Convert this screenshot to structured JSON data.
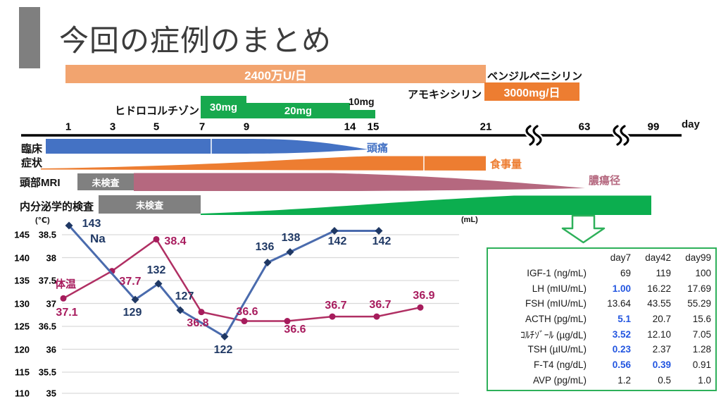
{
  "slide_title": "今回の症例のまとめ",
  "medications": {
    "penicillin_dose": "2400万U/日",
    "penicillin_name": "ベンジルペニシリン",
    "amoxicillin_name": "アモキシシリン",
    "amoxicillin_dose": "3000mg/日",
    "hydrocortisone_name": "ヒドロコルチゾン",
    "hydrocortisone_doses": [
      "30mg",
      "20mg",
      "10mg"
    ]
  },
  "day_axis": {
    "ticks": [
      "1",
      "3",
      "5",
      "7",
      "9",
      "14",
      "15",
      "21",
      "63",
      "99"
    ],
    "unit_label": "day"
  },
  "course": {
    "clinical_label": "臨床\n症状",
    "headache_label": "頭痛",
    "meal_label": "食事量",
    "mri_label": "頭部MRI",
    "not_tested_1": "未検査",
    "not_tested_2": "未検査",
    "abscess_label": "膿瘍径",
    "endocrine_label": "内分泌学的検査"
  },
  "chart": {
    "celsius_unit": "(℃)",
    "ml_unit": "(mL)",
    "na_ticks": [
      "145",
      "140",
      "135",
      "130",
      "125",
      "120",
      "115",
      "110"
    ],
    "temp_ticks": [
      "38.5",
      "38",
      "37.5",
      "37",
      "36.5",
      "36",
      "35.5",
      "35"
    ],
    "na_legend": "Na",
    "temp_legend": "体温"
  },
  "chart_data": [
    {
      "type": "line",
      "title": "clinical course: serum Na and body temperature",
      "series": [
        {
          "name": "Na",
          "values": [
            143,
            129,
            132,
            127,
            122,
            136,
            138,
            142,
            142
          ],
          "decimals": 0
        },
        {
          "name": "体温",
          "values": [
            37.1,
            37.7,
            38.4,
            36.8,
            36.6,
            36.6,
            36.7,
            36.7,
            36.9
          ],
          "decimals": 1
        }
      ],
      "left_axis": {
        "label": "Na",
        "ticks": [
          145,
          140,
          135,
          130,
          125,
          120,
          115,
          110
        ]
      },
      "right_axis": {
        "label": "(℃)",
        "ticks": [
          38.5,
          38,
          37.5,
          37,
          36.5,
          36,
          35.5,
          35
        ]
      },
      "x_axis": {
        "label": "day",
        "ticks": [
          1,
          3,
          5,
          7,
          9,
          14,
          15,
          21,
          63,
          99
        ]
      },
      "grid": true,
      "legend_position": "inline"
    },
    {
      "type": "table",
      "columns": [
        "day7",
        "day42",
        "day99"
      ],
      "rows": [
        {
          "label": "IGF-1 (ng/mL)",
          "values": [
            "69",
            "119",
            "100"
          ],
          "blue": [
            false,
            false,
            false
          ]
        },
        {
          "label": "LH (mIU/mL)",
          "values": [
            "1.00",
            "16.22",
            "17.69"
          ],
          "blue": [
            true,
            false,
            false
          ]
        },
        {
          "label": "FSH (mIU/mL)",
          "values": [
            "13.64",
            "43.55",
            "55.29"
          ],
          "blue": [
            false,
            false,
            false
          ]
        },
        {
          "label": "ACTH (pg/mL)",
          "values": [
            "5.1",
            "20.7",
            "15.6"
          ],
          "blue": [
            true,
            false,
            false
          ]
        },
        {
          "label": "ｺﾙﾁｿﾞｰﾙ (µg/dL)",
          "values": [
            "3.52",
            "12.10",
            "7.05"
          ],
          "blue": [
            true,
            false,
            false
          ]
        },
        {
          "label": "TSH (µIU/mL)",
          "values": [
            "0.23",
            "2.37",
            "1.28"
          ],
          "blue": [
            true,
            false,
            false
          ]
        },
        {
          "label": "F-T4 (ng/dL)",
          "values": [
            "0.56",
            "0.39",
            "0.91"
          ],
          "blue": [
            true,
            true,
            false
          ]
        },
        {
          "label": "AVP (pg/mL)",
          "values": [
            "1.2",
            "0.5",
            "1.0"
          ],
          "blue": [
            false,
            false,
            false
          ]
        }
      ]
    }
  ],
  "colors": {
    "penicillin_bar": "#F2A46F",
    "amoxicillin_bar": "#ED7D31",
    "hydrocortisone_bar": "#17A94E",
    "headache_band": "#4472C4",
    "meal_band": "#ED7D31",
    "abscess_band": "#B5687F",
    "endocrine_band": "#0CAE4F",
    "not_tested_box": "#808080",
    "na_series": "#1F3864",
    "temp_series": "#A81C5E",
    "table_accent": "#2EB05A",
    "highlight_blue": "#2255E0"
  }
}
